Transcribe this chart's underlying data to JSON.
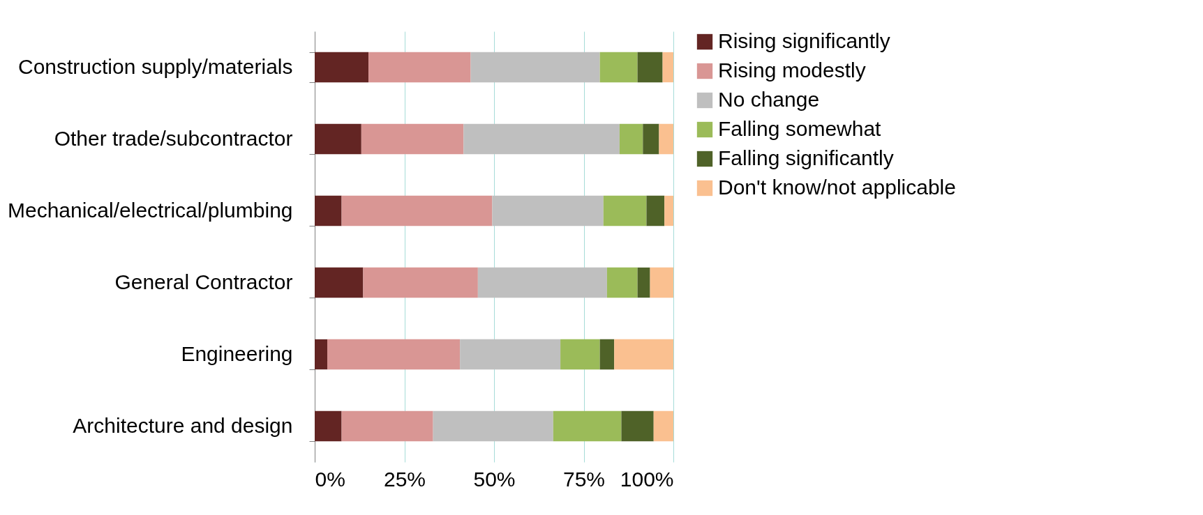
{
  "chart_data": {
    "type": "bar",
    "orientation": "horizontal",
    "stacked": true,
    "categories": [
      "Construction supply/materials",
      "Other trade/subcontractor",
      "Mechanical/electrical/plumbing",
      "General Contractor",
      "Engineering",
      "Architecture and design"
    ],
    "series": [
      {
        "name": "Rising significantly",
        "color": "#632523",
        "values": [
          15,
          13,
          7.5,
          13.5,
          3.5,
          7.5
        ]
      },
      {
        "name": "Rising modestly",
        "color": "#d99694",
        "values": [
          28.5,
          28.5,
          42,
          32,
          37,
          25.5
        ]
      },
      {
        "name": "No change",
        "color": "#bfbfbf",
        "values": [
          36,
          43.5,
          31,
          36,
          28,
          33.5
        ]
      },
      {
        "name": "Falling somewhat",
        "color": "#9bbb59",
        "values": [
          10.5,
          6.5,
          12,
          8.5,
          11,
          19
        ]
      },
      {
        "name": "Falling significantly",
        "color": "#4f6228",
        "values": [
          7,
          4.5,
          5,
          3.5,
          4,
          9
        ]
      },
      {
        "name": "Don't know/not applicable",
        "color": "#fac090",
        "values": [
          3,
          4,
          2.5,
          6.5,
          16.5,
          5.5
        ]
      }
    ],
    "xlim": [
      0,
      100
    ],
    "xticks": [
      {
        "value": 0,
        "label": "0%"
      },
      {
        "value": 25,
        "label": "25%"
      },
      {
        "value": 50,
        "label": "50%"
      },
      {
        "value": 75,
        "label": "75%"
      },
      {
        "value": 100,
        "label": "100%"
      }
    ],
    "grid": "x",
    "legend": "right"
  }
}
